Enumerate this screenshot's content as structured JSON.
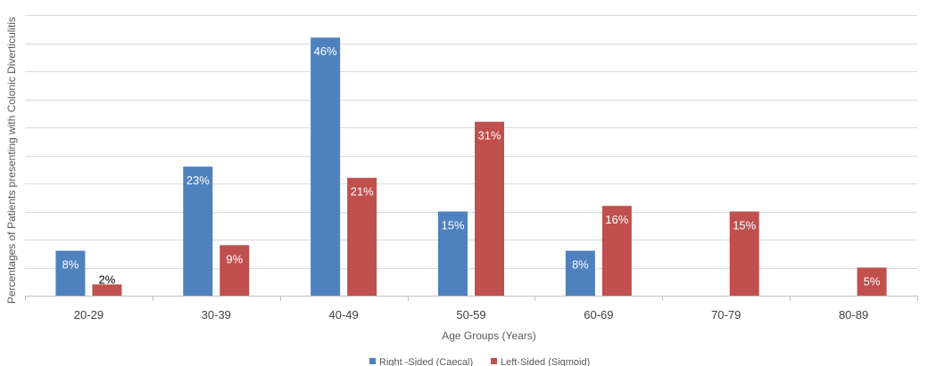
{
  "chart_data": {
    "type": "bar",
    "title": "",
    "xlabel": "Age Groups (Years)",
    "ylabel": "Percentages of Patients presenting with Colonic Diverticulitis",
    "ylim": [
      0,
      50
    ],
    "grid": true,
    "legend_position": "bottom",
    "categories": [
      "20-29",
      "30-39",
      "40-49",
      "50-59",
      "60-69",
      "70-79",
      "80-89"
    ],
    "series": [
      {
        "name": "Right -Sided (Caecal)",
        "color": "#4f81bd",
        "values": [
          8,
          23,
          46,
          15,
          8,
          null,
          null
        ],
        "labels": [
          "8%",
          "23%",
          "46%",
          "15%",
          "8%",
          "",
          ""
        ]
      },
      {
        "name": "Left-Sided (Sigmoid)",
        "color": "#c0504d",
        "values": [
          2,
          9,
          21,
          31,
          16,
          15,
          5
        ],
        "labels": [
          "2%",
          "9%",
          "21%",
          "31%",
          "16%",
          "15%",
          "5%"
        ]
      }
    ]
  }
}
